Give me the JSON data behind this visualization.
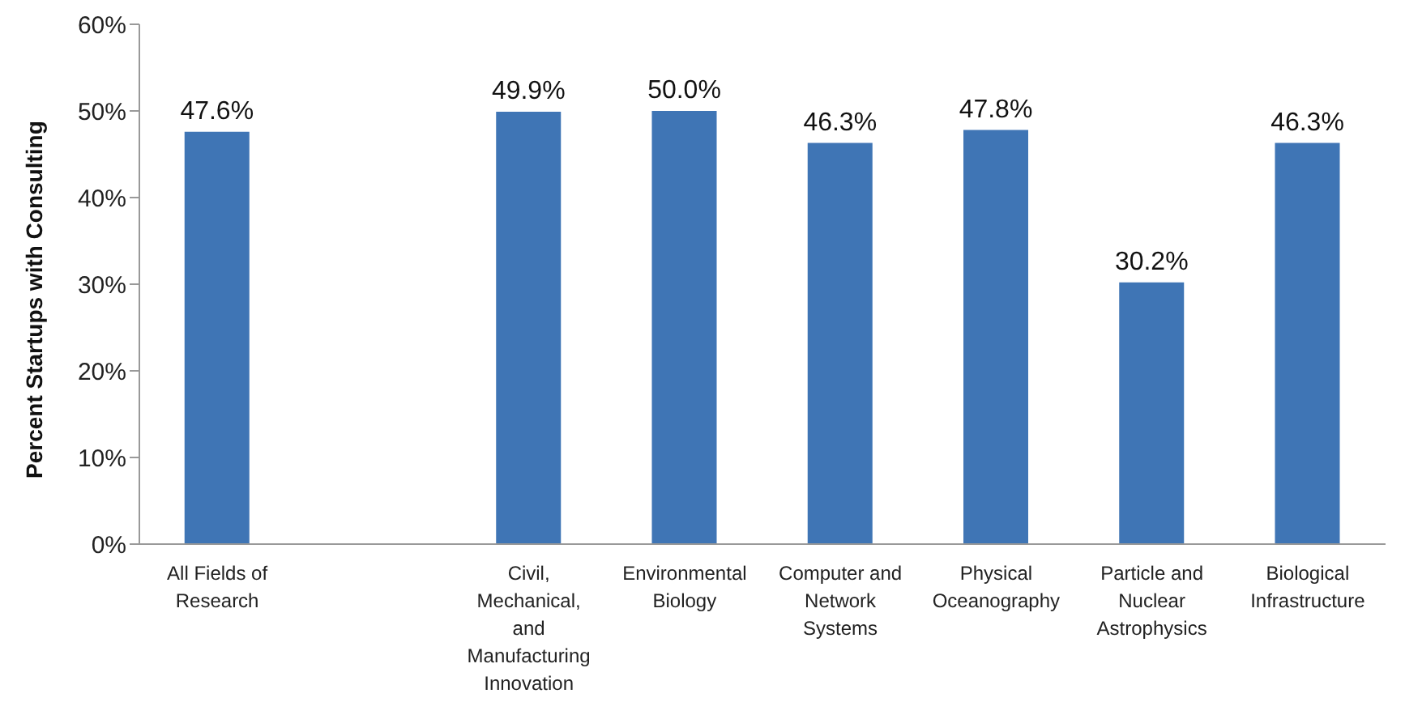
{
  "chart_data": {
    "type": "bar",
    "ylabel": "Percent Startups with Consulting",
    "categories": [
      "All Fields of Research",
      null,
      "Civil, Mechanical, and Manufacturing Innovation",
      "Environmental Biology",
      "Computer and Network Systems",
      "Physical Oceanography",
      "Particle and Nuclear Astrophysics",
      "Biological Infrastructure"
    ],
    "values": [
      47.6,
      null,
      49.9,
      50.0,
      46.3,
      47.8,
      30.2,
      46.3
    ],
    "value_labels": [
      "47.6%",
      null,
      "49.9%",
      "50.0%",
      "46.3%",
      "47.8%",
      "30.2%",
      "46.3%"
    ],
    "color": "#3f75b5",
    "ylim": [
      0,
      60
    ],
    "yticks": [
      {
        "value": 0,
        "label": "0%"
      },
      {
        "value": 10,
        "label": "10%"
      },
      {
        "value": 20,
        "label": "20%"
      },
      {
        "value": 30,
        "label": "30%"
      },
      {
        "value": 40,
        "label": "40%"
      },
      {
        "value": 50,
        "label": "50%"
      },
      {
        "value": 60,
        "label": "60%"
      }
    ],
    "grid": false,
    "legend": false
  }
}
